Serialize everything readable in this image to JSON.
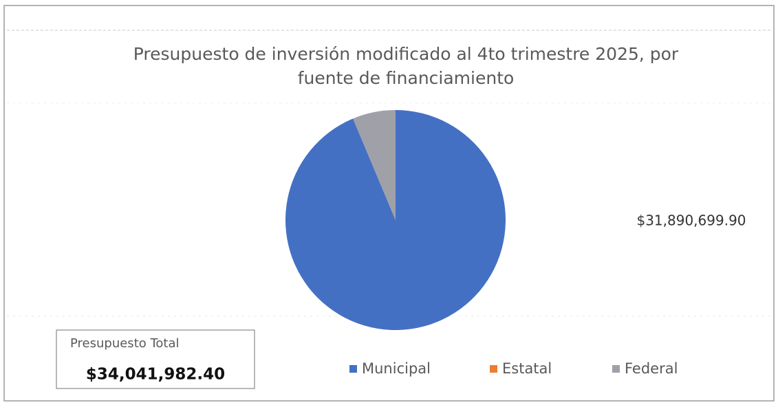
{
  "chart_data": {
    "type": "pie",
    "title": "Presupuesto de inversión modificado al 4to trimestre 2025, por fuente de financiamiento",
    "categories": [
      "Municipal",
      "Estatal",
      "Federal"
    ],
    "values": [
      31890699.9,
      0,
      2151282.5
    ],
    "value_labels": [
      "$31,890,699.90",
      null,
      null
    ],
    "colors": [
      "#4470c4",
      "#ed7d31",
      "#a0a0a8"
    ],
    "legend": "bottom",
    "annotations": [
      {
        "text": "Presupuesto Total"
      },
      {
        "text": "$34,041,982.40"
      }
    ]
  }
}
